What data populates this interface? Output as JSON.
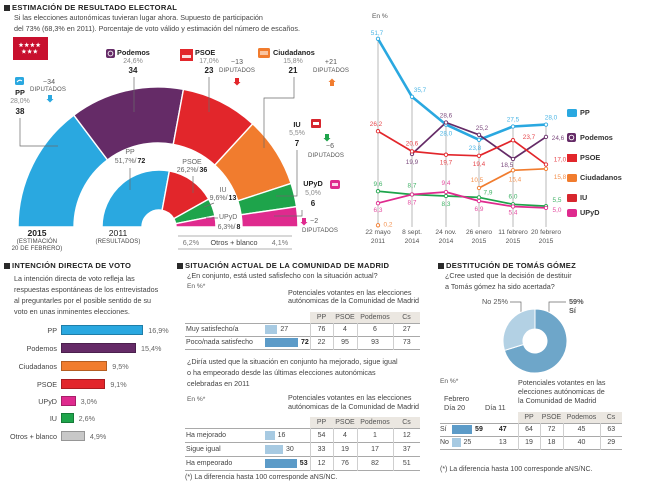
{
  "colors": {
    "PP": "#2aa8e0",
    "Podemos": "#652b67",
    "PSOE": "#e2262b",
    "Ciudadanos": "#f17c2e",
    "IU": "#1ea44b",
    "UPyD": "#df2a8e",
    "Otros": "#c8c8c8",
    "IU_icon": "#d7262e",
    "madrid_flag": "#c8102e",
    "table_bar_light": "#a7cae2",
    "table_bar_dark": "#5c9bc8",
    "donut_si": "#6ea6c9",
    "donut_no": "#b3d1e4",
    "table_header_bg": "#ebe7e1",
    "guide": "#8a8a8a"
  },
  "estimacion": {
    "title": "ESTIMACIÓN DE RESULTADO ELECTORAL",
    "subtitle": [
      "Si las elecciones autonómicas tuvieran lugar ahora. Supuesto de participación",
      "del 73% (68,3% en 2011). Porcentaje de voto válido y estimación del número de escaños."
    ],
    "parties_2015": [
      {
        "name": "PP",
        "percent": "28,0%",
        "seats": "38",
        "change": "−34",
        "change_unit": "DIPUTADOS"
      },
      {
        "name": "Podemos",
        "percent": "24,6%",
        "seats": "34"
      },
      {
        "name": "PSOE",
        "percent": "17,0%",
        "seats": "23",
        "change": "−13",
        "change_unit": "DIPUTADOS"
      },
      {
        "name": "Ciudadanos",
        "percent": "15,8%",
        "seats": "21",
        "change": "+21",
        "change_unit": "DIPUTADOS"
      },
      {
        "name": "IU",
        "percent": "5,5%",
        "seats": "7",
        "change": "−6",
        "change_unit": "DIPUTADOS"
      },
      {
        "name": "UPyD",
        "percent": "5,0%",
        "seats": "6",
        "change": "−2",
        "change_unit": "DIPUTADOS"
      }
    ],
    "parties_2011": [
      {
        "name": "PP",
        "percent": "51,7%/",
        "seats": "72"
      },
      {
        "name": "PSOE",
        "percent": "26,2%/",
        "seats": "36"
      },
      {
        "name": "IU",
        "percent": "9,6%/",
        "seats": "13"
      },
      {
        "name": "UPyD",
        "percent": "6,3%/",
        "seats": "8"
      }
    ],
    "year_2015": "2015",
    "year_2015_note": [
      "(ESTIMACIÓN",
      "20 DE FEBRERO)"
    ],
    "year_2011": "2011",
    "year_2011_note": "(RESULTADOS)",
    "otros": {
      "pct_2011": "6,2%",
      "label": "Otros + blanco",
      "pct_2015": "4,1%"
    }
  },
  "evolucion": {
    "unit_label": "En %",
    "legend": [
      "PP",
      "Podemos",
      "PSOE",
      "Ciudadanos",
      "IU",
      "UPyD"
    ]
  },
  "intencion": {
    "title": "INTENCIÓN DIRECTA DE VOTO",
    "description": [
      "La intención directa de voto refleja las",
      "respuestas espontáneas de los entrevistados",
      "al preguntarles por el posible sentido de su",
      "voto en unas inminentes elecciones."
    ]
  },
  "situacion": {
    "title": "SITUACIÓN ACTUAL DE LA COMUNIDAD DE MADRID",
    "q1": "¿En conjunto, está usted safisfecho con la situación actual?",
    "q2": [
      "¿Diría usted que la situación en conjunto ha mejorado, sigue igual",
      "o ha empeorado desde las últimas elecciones autonómicas",
      "celebradas en 2011"
    ],
    "unit": "En %*",
    "group_header": [
      "Potenciales votantes en las elecciones",
      "autónomicas de la Comunidad de Madrid"
    ],
    "footnote": "(*) La diferencia hasta 100 corresponde aNS/NC."
  },
  "destitucion": {
    "title": "DESTITUCIÓN DE TOMÁS GÓMEZ",
    "question": [
      "¿Cree usted que la decisión de destituir",
      "a Tomás gómez ha sido acertada?"
    ],
    "no_label": "No 25%",
    "si_pct": "59%",
    "si_label": "Sí",
    "unit": "En %*",
    "month": "Febrero",
    "day_20": "Día 20",
    "day_11": "Día 11",
    "group_header": [
      "Potenciales votantes en las",
      "elecciones autónomicas de",
      "la Comunidad de Madrid"
    ],
    "footnote": "(*) La diferencia hasta 100 corresponde aNS/NC."
  },
  "chart_data": [
    {
      "id": "estimacion_2015",
      "type": "pie",
      "title": "2015",
      "subtitle": "(ESTIMACIÓN 20 DE FEBRERO)",
      "categories": [
        "PP",
        "Podemos",
        "PSOE",
        "Ciudadanos",
        "IU",
        "UPyD"
      ],
      "percent": [
        28.0,
        24.6,
        17.0,
        15.8,
        5.5,
        5.0
      ],
      "seats": [
        38,
        34,
        23,
        21,
        7,
        6
      ],
      "seat_change": [
        -34,
        null,
        -13,
        21,
        -6,
        -2
      ],
      "otros_blanco_percent": 4.1
    },
    {
      "id": "resultados_2011",
      "type": "pie",
      "title": "2011",
      "subtitle": "(RESULTADOS)",
      "categories": [
        "PP",
        "PSOE",
        "IU",
        "UPyD"
      ],
      "percent": [
        51.7,
        26.2,
        9.6,
        6.3
      ],
      "seats": [
        72,
        36,
        13,
        8
      ],
      "otros_blanco_percent": 6.2
    },
    {
      "id": "evolucion_voto",
      "type": "line",
      "ylabel": "En %",
      "x": [
        [
          "22 mayo",
          "2011"
        ],
        [
          "8 sept.",
          "2014"
        ],
        [
          "24 nov.",
          "2014"
        ],
        [
          "26 enero",
          "2015"
        ],
        [
          "11 febrero",
          "2015"
        ],
        [
          "20 febrero",
          "2015"
        ]
      ],
      "series": [
        {
          "name": "PP",
          "values": [
            51.7,
            35.7,
            28.0,
            23.8,
            27.5,
            28.0
          ]
        },
        {
          "name": "Podemos",
          "values": [
            null,
            19.9,
            28.6,
            25.2,
            18.5,
            24.6
          ]
        },
        {
          "name": "PSOE",
          "values": [
            26.2,
            20.6,
            19.7,
            19.4,
            23.7,
            17.0
          ]
        },
        {
          "name": "Ciudadanos",
          "values": [
            0.2,
            null,
            null,
            10.5,
            15.4,
            15.8
          ]
        },
        {
          "name": "IU",
          "values": [
            9.6,
            8.7,
            8.3,
            7.9,
            6.0,
            5.5
          ]
        },
        {
          "name": "UPyD",
          "values": [
            6.3,
            8.7,
            9.4,
            6.9,
            5.4,
            5.0
          ]
        }
      ],
      "ylim": [
        0,
        55
      ],
      "grid": false,
      "legend": "right"
    },
    {
      "id": "intencion_directa",
      "type": "bar",
      "orientation": "horizontal",
      "categories": [
        "PP",
        "Podemos",
        "Ciudadanos",
        "PSOE",
        "UPyD",
        "IU",
        "Otros + blanco"
      ],
      "values": [
        16.9,
        15.4,
        9.5,
        9.1,
        3.0,
        2.6,
        4.9
      ],
      "labels": [
        "16,9%",
        "15,4%",
        "9,5%",
        "9,1%",
        "3,0%",
        "2,6%",
        "4,9%"
      ],
      "color_keys": [
        "PP",
        "Podemos",
        "Ciudadanos",
        "PSOE",
        "UPyD",
        "IU",
        "Otros"
      ]
    },
    {
      "id": "destitucion_tomas_gomez",
      "type": "pie",
      "categories": [
        "Sí",
        "No"
      ],
      "values": [
        59,
        25
      ],
      "color_keys": [
        "donut_si",
        "donut_no"
      ]
    },
    {
      "id": "satisfaccion_situacion",
      "type": "table",
      "columns": [
        "PP",
        "PSOE",
        "Podemos",
        "Cs"
      ],
      "rows": [
        {
          "label": "Muy satisfecho/a",
          "total": 27,
          "by_party": [
            76,
            4,
            6,
            27
          ]
        },
        {
          "label": "Poco/nada satisfecho",
          "total": 72,
          "by_party": [
            22,
            95,
            93,
            73
          ]
        }
      ]
    },
    {
      "id": "evolucion_situacion",
      "type": "table",
      "columns": [
        "PP",
        "PSOE",
        "Podemos",
        "Cs"
      ],
      "rows": [
        {
          "label": "Ha mejorado",
          "total": 16,
          "by_party": [
            54,
            4,
            1,
            12
          ]
        },
        {
          "label": "Sigue igual",
          "total": 30,
          "by_party": [
            33,
            19,
            17,
            37
          ]
        },
        {
          "label": "Ha empeorado",
          "total": 53,
          "by_party": [
            12,
            76,
            82,
            51
          ]
        }
      ]
    },
    {
      "id": "destitucion_tabla",
      "type": "table",
      "columns": [
        "PP",
        "PSOE",
        "Podemos",
        "Cs"
      ],
      "rows": [
        {
          "label": "Sí",
          "dia_20": 59,
          "dia_11": 47,
          "by_party": [
            64,
            72,
            45,
            63
          ]
        },
        {
          "label": "No",
          "dia_20": 25,
          "dia_11": 13,
          "by_party": [
            19,
            18,
            40,
            29
          ]
        }
      ]
    }
  ]
}
